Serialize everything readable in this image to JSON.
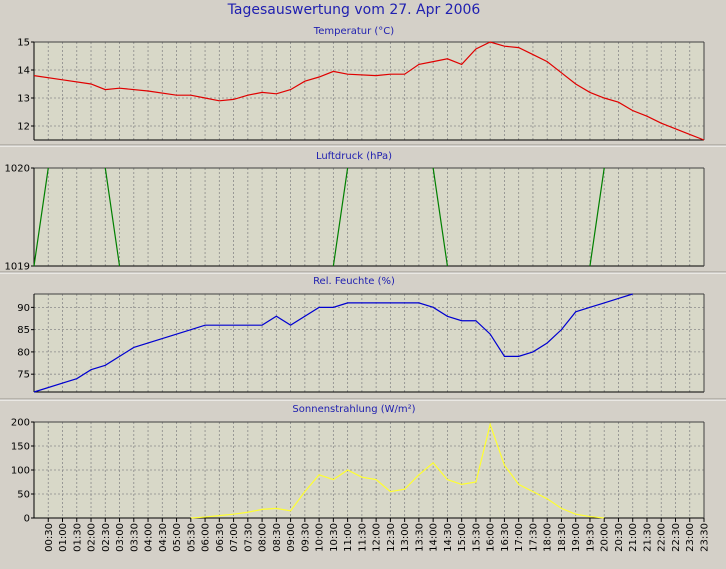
{
  "title": "Tagesauswertung vom 27. Apr 2006",
  "colors": {
    "background": "#d4d0c8",
    "plot_background": "#d8d8c8",
    "title_text": "#2020b0",
    "temperature": "#e00000",
    "pressure": "#008000",
    "humidity": "#0000d0",
    "solar": "#ffff30"
  },
  "x_tick_labels": [
    "00:30",
    "01:00",
    "01:30",
    "02:00",
    "02:30",
    "03:00",
    "03:30",
    "04:00",
    "04:30",
    "05:00",
    "05:30",
    "06:00",
    "06:30",
    "07:00",
    "07:30",
    "08:00",
    "08:30",
    "09:00",
    "09:30",
    "10:00",
    "10:30",
    "11:00",
    "11:30",
    "12:00",
    "12:30",
    "13:00",
    "13:30",
    "14:00",
    "14:30",
    "15:00",
    "15:30",
    "16:00",
    "16:30",
    "17:00",
    "17:30",
    "18:00",
    "18:30",
    "19:00",
    "19:30",
    "20:00",
    "20:30",
    "21:00",
    "21:30",
    "22:00",
    "22:30",
    "23:00",
    "23:30"
  ],
  "chart_data": [
    {
      "type": "line",
      "title": "Temperatur (°C)",
      "ylim": [
        11.5,
        15
      ],
      "yticks": [
        "12",
        "13",
        "14",
        "15"
      ],
      "grid": true,
      "x": [
        "00:00",
        "01:00",
        "02:00",
        "02:30",
        "03:00",
        "04:00",
        "05:00",
        "05:30",
        "06:00",
        "06:30",
        "07:00",
        "07:30",
        "08:00",
        "08:30",
        "09:00",
        "09:30",
        "10:00",
        "10:30",
        "11:00",
        "12:00",
        "12:30",
        "13:00",
        "13:30",
        "14:00",
        "14:30",
        "15:00",
        "15:30",
        "16:00",
        "16:30",
        "17:00",
        "17:30",
        "18:00",
        "18:30",
        "19:00",
        "19:30",
        "20:00",
        "20:30",
        "21:00",
        "21:30",
        "22:00",
        "22:30",
        "23:00",
        "23:30"
      ],
      "values": [
        13.8,
        13.65,
        13.5,
        13.3,
        13.35,
        13.25,
        13.1,
        13.1,
        13.0,
        12.9,
        12.95,
        13.1,
        13.2,
        13.15,
        13.3,
        13.6,
        13.75,
        13.95,
        13.85,
        13.8,
        13.85,
        13.85,
        14.2,
        14.3,
        14.4,
        14.2,
        14.75,
        15.0,
        14.85,
        14.8,
        14.55,
        14.3,
        13.9,
        13.5,
        13.2,
        13.0,
        12.85,
        12.55,
        12.35,
        12.1,
        11.9,
        11.7,
        11.5
      ]
    },
    {
      "type": "line",
      "title": "Luftdruck (hPa)",
      "ylim": [
        1019,
        1020
      ],
      "yticks": [
        "1019",
        "1020"
      ],
      "grid": true,
      "segments": [
        {
          "x": [
            "00:00",
            "00:30"
          ],
          "values": [
            1019,
            1020
          ]
        },
        {
          "x": [
            "02:30",
            "03:00"
          ],
          "values": [
            1020,
            1019
          ]
        },
        {
          "x": [
            "10:30",
            "11:00"
          ],
          "values": [
            1019,
            1020
          ]
        },
        {
          "x": [
            "14:00",
            "14:30"
          ],
          "values": [
            1020,
            1019
          ]
        },
        {
          "x": [
            "19:30",
            "20:00"
          ],
          "values": [
            1019,
            1020
          ]
        }
      ]
    },
    {
      "type": "line",
      "title": "Rel. Feuchte (%)",
      "ylim": [
        71,
        93
      ],
      "yticks": [
        "75",
        "80",
        "85",
        "90"
      ],
      "grid": true,
      "x": [
        "00:00",
        "01:30",
        "02:00",
        "02:30",
        "03:30",
        "05:30",
        "06:00",
        "07:00",
        "07:30",
        "08:00",
        "08:30",
        "09:00",
        "10:00",
        "10:30",
        "11:00",
        "12:00",
        "13:00",
        "13:30",
        "14:00",
        "14:30",
        "15:00",
        "15:30",
        "16:00",
        "16:30",
        "17:00",
        "17:30",
        "18:00",
        "18:30",
        "19:00",
        "19:30",
        "20:00",
        "20:30",
        "21:00"
      ],
      "values": [
        71,
        74,
        76,
        77,
        81,
        85,
        86,
        86,
        86,
        86,
        88,
        86,
        90,
        90,
        91,
        91,
        91,
        91,
        90,
        88,
        87,
        87,
        84,
        79,
        79,
        80,
        82,
        85,
        89,
        90,
        91,
        92,
        93
      ]
    },
    {
      "type": "line",
      "title": "Sonnenstrahlung (W/m²)",
      "ylim": [
        0,
        200
      ],
      "yticks": [
        "0",
        "50",
        "100",
        "150",
        "200"
      ],
      "grid": true,
      "x": [
        "05:30",
        "06:00",
        "06:30",
        "07:00",
        "07:30",
        "08:00",
        "08:30",
        "09:00",
        "09:30",
        "10:00",
        "10:30",
        "11:00",
        "11:30",
        "12:00",
        "12:30",
        "13:00",
        "13:30",
        "14:00",
        "14:30",
        "15:00",
        "15:30",
        "16:00",
        "16:30",
        "17:00",
        "17:30",
        "18:00",
        "18:30",
        "19:00",
        "19:30",
        "20:00"
      ],
      "values": [
        0,
        2,
        5,
        8,
        12,
        18,
        20,
        15,
        55,
        90,
        80,
        100,
        85,
        80,
        55,
        60,
        90,
        115,
        80,
        70,
        75,
        195,
        110,
        70,
        55,
        40,
        20,
        8,
        3,
        0
      ]
    }
  ]
}
